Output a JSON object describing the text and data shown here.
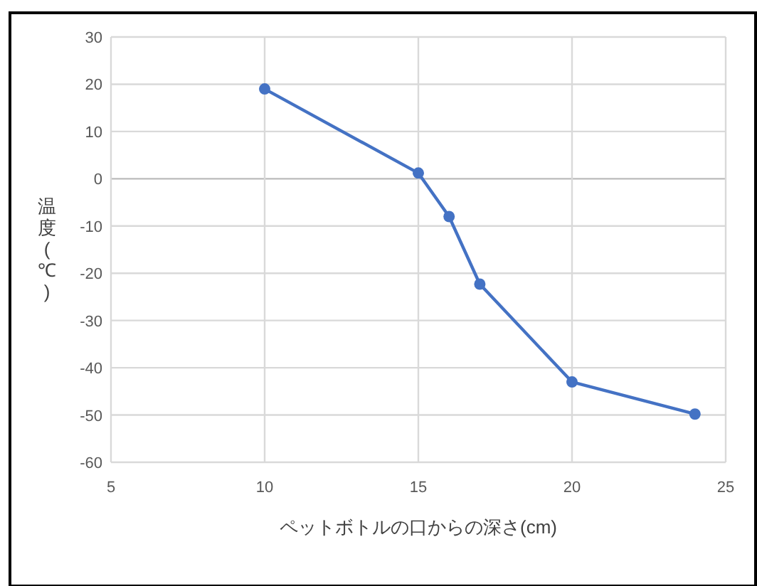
{
  "chart_data": {
    "type": "line",
    "xlabel": "ペットボトルの口からの深さ(cm)",
    "ylabel": "温度(℃)",
    "x": [
      10,
      15,
      16,
      17,
      20,
      24
    ],
    "series": [
      {
        "color": "#4472c4",
        "values": [
          19,
          1.2,
          -8,
          -22.3,
          -43,
          -49.8
        ]
      }
    ],
    "xlim": [
      5,
      25
    ],
    "xticks": [
      5,
      10,
      15,
      20,
      25
    ],
    "ylim": [
      -60,
      30
    ],
    "yticks": [
      -60,
      -50,
      -40,
      -30,
      -20,
      -10,
      0,
      10,
      20,
      30
    ],
    "grid": true,
    "marker": "circle",
    "line_style": "solid"
  }
}
